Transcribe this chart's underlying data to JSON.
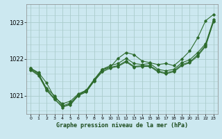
{
  "title": "Graphe pression niveau de la mer (hPa)",
  "background_color": "#cce8f0",
  "grid_color": "#aacccc",
  "line_color": "#2d6b2d",
  "xlim": [
    -0.5,
    23.5
  ],
  "ylim": [
    1020.5,
    1023.5
  ],
  "yticks": [
    1021,
    1022,
    1023
  ],
  "xticks": [
    0,
    1,
    2,
    3,
    4,
    5,
    6,
    7,
    8,
    9,
    10,
    11,
    12,
    13,
    14,
    15,
    16,
    17,
    18,
    19,
    20,
    21,
    22,
    23
  ],
  "lines": [
    [
      1021.75,
      1021.63,
      1021.35,
      1020.95,
      1020.78,
      1020.85,
      1021.05,
      1021.15,
      1021.42,
      1021.72,
      1021.78,
      1022.02,
      1022.18,
      1022.12,
      1021.95,
      1021.9,
      1021.85,
      1021.88,
      1021.82,
      1022.0,
      1022.22,
      1022.58,
      1023.05,
      1023.22
    ],
    [
      1021.75,
      1021.6,
      1021.2,
      1021.0,
      1020.72,
      1020.8,
      1021.02,
      1021.15,
      1021.45,
      1021.72,
      1021.82,
      1021.88,
      1022.02,
      1021.88,
      1021.85,
      1021.88,
      1021.72,
      1021.68,
      1021.72,
      1021.9,
      1021.98,
      1022.18,
      1022.42,
      1023.08
    ],
    [
      1021.72,
      1021.58,
      1021.18,
      1020.92,
      1020.68,
      1020.78,
      1021.02,
      1021.12,
      1021.42,
      1021.68,
      1021.78,
      1021.82,
      1021.95,
      1021.8,
      1021.82,
      1021.82,
      1021.68,
      1021.62,
      1021.68,
      1021.85,
      1021.92,
      1022.12,
      1022.38,
      1023.05
    ],
    [
      1021.7,
      1021.55,
      1021.15,
      1020.9,
      1020.7,
      1020.75,
      1021.0,
      1021.1,
      1021.4,
      1021.65,
      1021.75,
      1021.8,
      1021.92,
      1021.78,
      1021.8,
      1021.8,
      1021.65,
      1021.6,
      1021.65,
      1021.82,
      1021.9,
      1022.08,
      1022.35,
      1023.02
    ]
  ]
}
